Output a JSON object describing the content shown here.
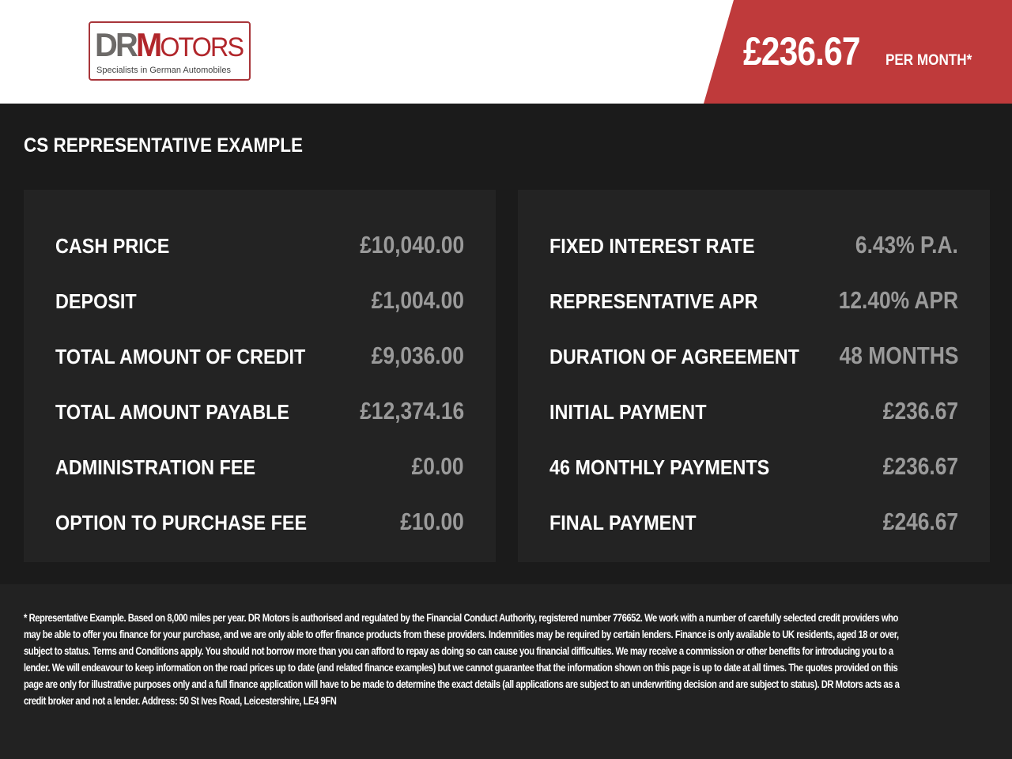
{
  "header": {
    "logo": {
      "brand_dr": "DR",
      "brand_m": "M",
      "brand_rest": "OTORS",
      "tagline": "Specialists in German Automobiles"
    },
    "monthly_price": "£236.67",
    "per_month_label": "PER MONTH*",
    "accent_color": "#bf3a3b"
  },
  "section_title": "CS REPRESENTATIVE EXAMPLE",
  "left_panel": [
    {
      "label": "CASH PRICE",
      "value": "£10,040.00"
    },
    {
      "label": "DEPOSIT",
      "value": "£1,004.00"
    },
    {
      "label": "TOTAL AMOUNT OF CREDIT",
      "value": "£9,036.00"
    },
    {
      "label": "TOTAL AMOUNT PAYABLE",
      "value": "£12,374.16"
    },
    {
      "label": "ADMINISTRATION FEE",
      "value": "£0.00"
    },
    {
      "label": "OPTION TO PURCHASE FEE",
      "value": "£10.00"
    }
  ],
  "right_panel": [
    {
      "label": "FIXED INTEREST RATE",
      "value": "6.43% P.A."
    },
    {
      "label": "REPRESENTATIVE APR",
      "value": "12.40% APR"
    },
    {
      "label": "DURATION OF AGREEMENT",
      "value": "48 MONTHS"
    },
    {
      "label": "INITIAL PAYMENT",
      "value": "£236.67"
    },
    {
      "label": "46 MONTHLY PAYMENTS",
      "value": "£236.67"
    },
    {
      "label": "FINAL PAYMENT",
      "value": "£246.67"
    }
  ],
  "disclaimer": "* Representative Example. Based on 8,000 miles per year. DR Motors is authorised and regulated by the Financial Conduct Authority, registered number 776652. We work with a number of carefully selected credit providers who may be able to offer you finance for your purchase, and we are only able to offer finance products from these providers. Indemnities may be required by certain lenders. Finance is only available to UK residents, aged 18 or over, subject to status. Terms and Conditions apply. You should not borrow more than you can afford to repay as doing so can cause you financial difficulties. We may receive a commission or other benefits for introducing you to a lender. We will endeavour to keep information on the road prices up to date (and related finance examples) but we cannot guarantee that the information shown on this page is up to date at all times. The quotes provided on this page are only for illustrative purposes only and a full finance application will have to be made to determine the exact details (all applications are subject to an underwriting decision and are subject to status). DR Motors acts as a credit broker and not a lender. Address: 50 St Ives Road, Leicestershire, LE4 9FN"
}
